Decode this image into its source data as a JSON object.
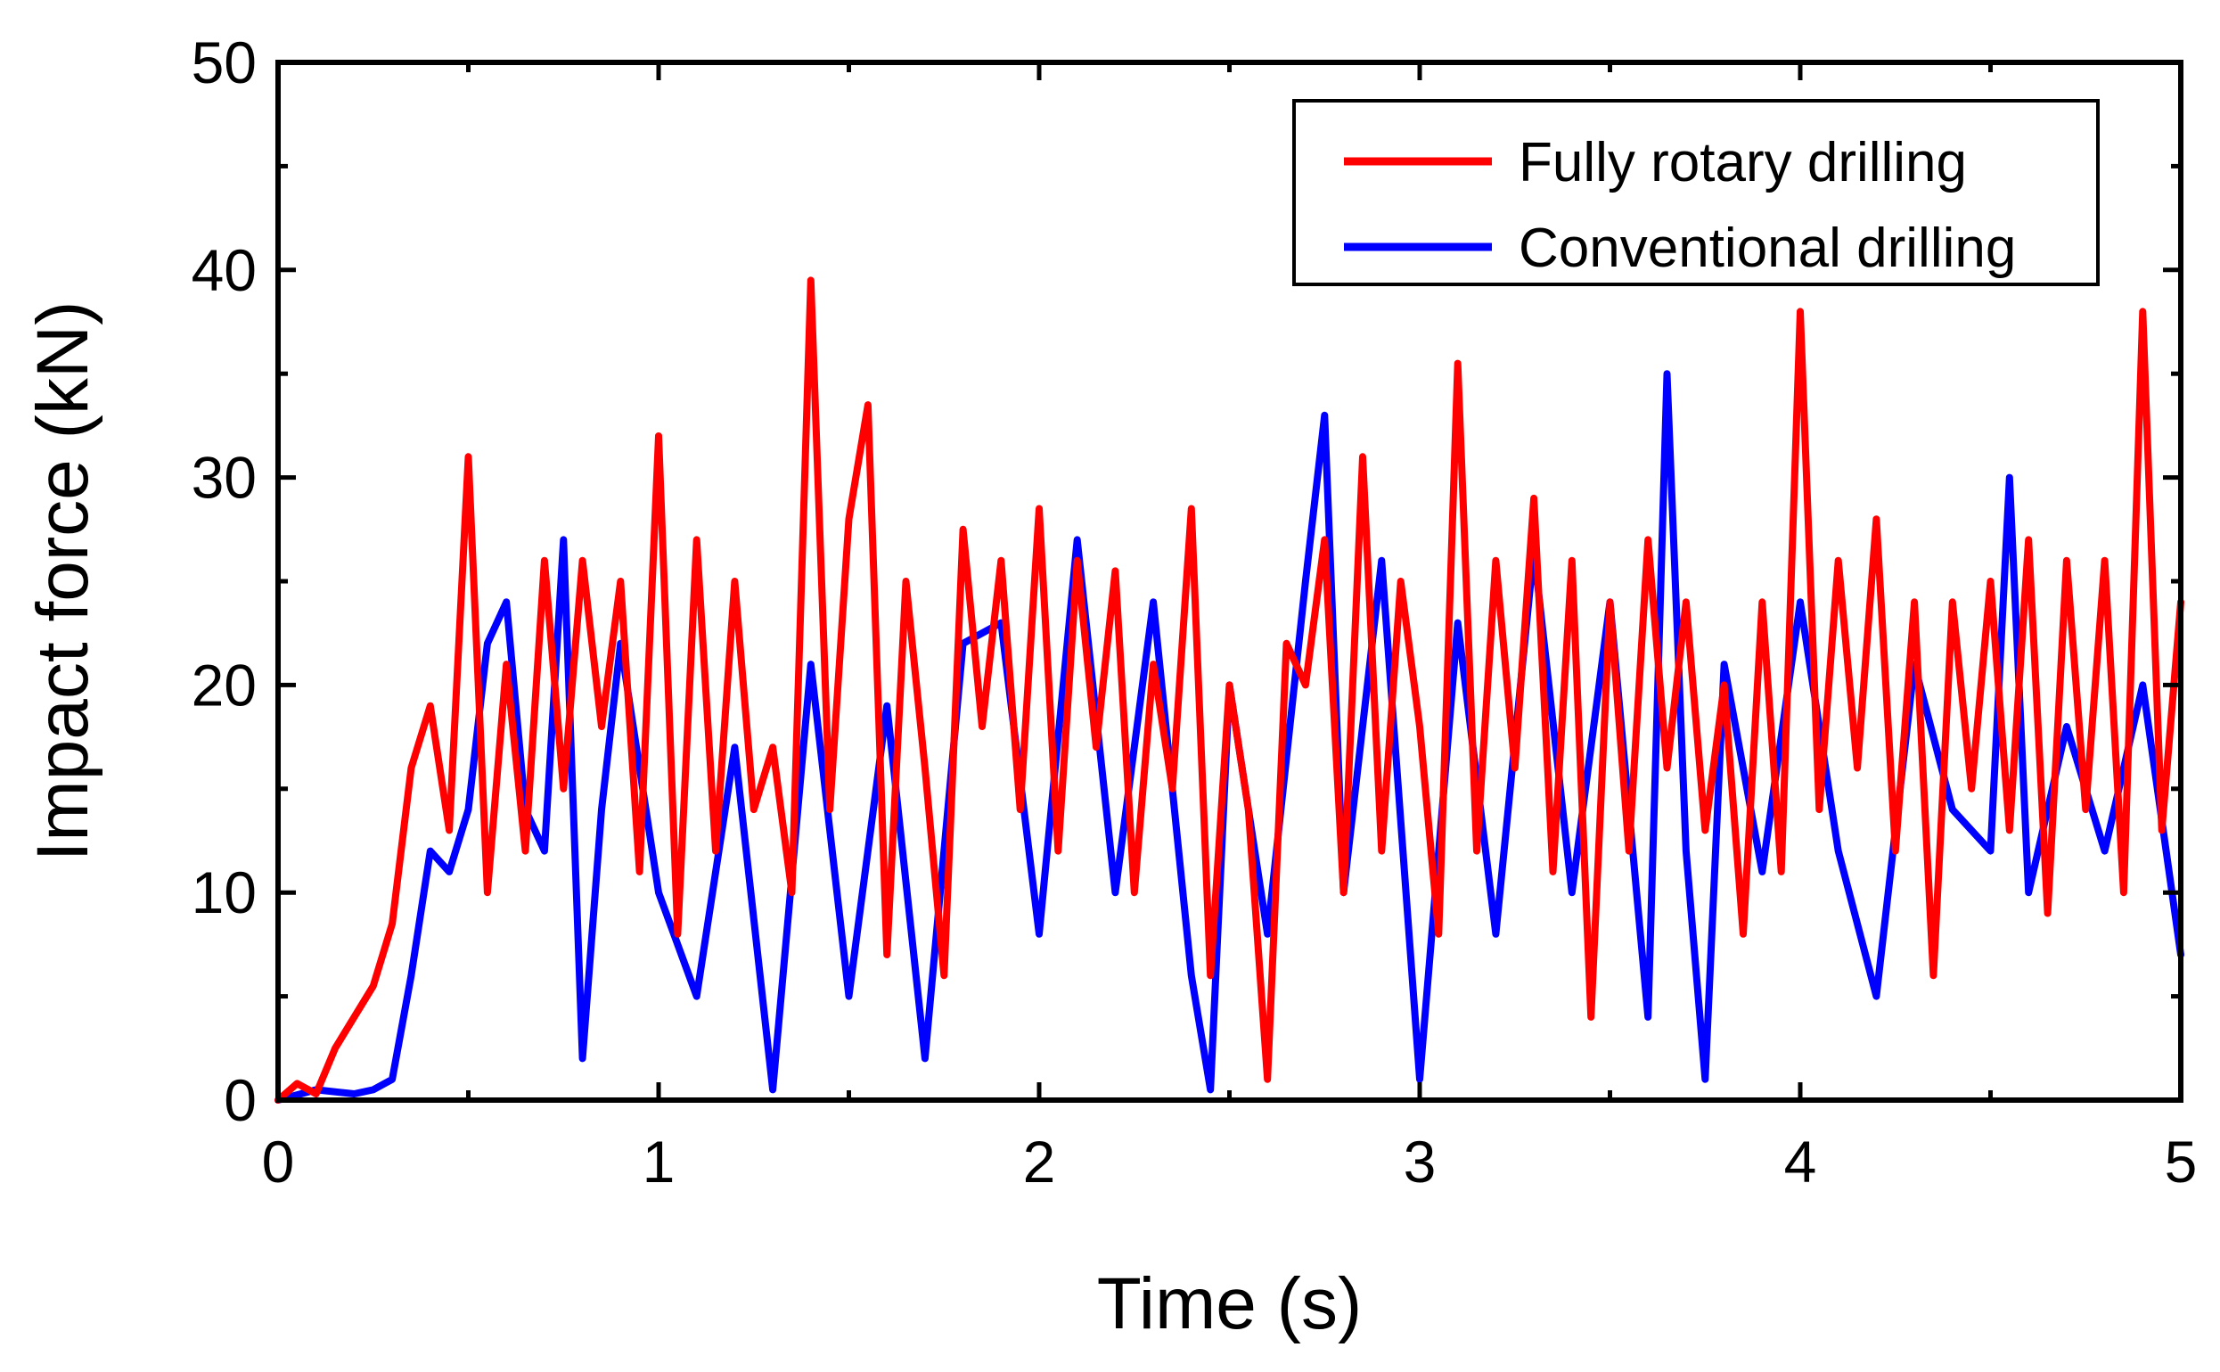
{
  "chart_data": {
    "type": "line",
    "title": "",
    "xlabel": "Time (s)",
    "ylabel": "Impact force (kN)",
    "xlim": [
      0,
      5
    ],
    "ylim": [
      0,
      50
    ],
    "xticks": [
      "0",
      "1",
      "2",
      "3",
      "4",
      "5"
    ],
    "yticks": [
      "0",
      "10",
      "20",
      "30",
      "40",
      "50"
    ],
    "grid": false,
    "legend_position": "top-right",
    "series": [
      {
        "name": "Fully rotary drilling",
        "color": "#ff0000",
        "x": [
          0,
          0.05,
          0.1,
          0.15,
          0.2,
          0.25,
          0.3,
          0.35,
          0.4,
          0.45,
          0.5,
          0.55,
          0.6,
          0.65,
          0.7,
          0.75,
          0.8,
          0.85,
          0.9,
          0.95,
          1.0,
          1.05,
          1.1,
          1.15,
          1.2,
          1.25,
          1.3,
          1.35,
          1.4,
          1.45,
          1.5,
          1.55,
          1.6,
          1.65,
          1.7,
          1.75,
          1.8,
          1.85,
          1.9,
          1.95,
          2.0,
          2.05,
          2.1,
          2.15,
          2.2,
          2.25,
          2.3,
          2.35,
          2.4,
          2.45,
          2.5,
          2.55,
          2.6,
          2.65,
          2.7,
          2.75,
          2.8,
          2.85,
          2.9,
          2.95,
          3.0,
          3.05,
          3.1,
          3.15,
          3.2,
          3.25,
          3.3,
          3.35,
          3.4,
          3.45,
          3.5,
          3.55,
          3.6,
          3.65,
          3.7,
          3.75,
          3.8,
          3.85,
          3.9,
          3.95,
          4.0,
          4.05,
          4.1,
          4.15,
          4.2,
          4.25,
          4.3,
          4.35,
          4.4,
          4.45,
          4.5,
          4.55,
          4.6,
          4.65,
          4.7,
          4.75,
          4.8,
          4.85,
          4.9,
          4.95,
          5.0
        ],
        "values": [
          0,
          0.8,
          0.3,
          2.5,
          4.0,
          5.5,
          8.5,
          16.0,
          19.0,
          13.0,
          31.0,
          10.0,
          21.0,
          12.0,
          26.0,
          15.0,
          26.0,
          18.0,
          25.0,
          11.0,
          32.0,
          8.0,
          27.0,
          12.0,
          25.0,
          14.0,
          17.0,
          10.0,
          39.5,
          14.0,
          28.0,
          33.5,
          7.0,
          25.0,
          16.0,
          6.0,
          27.5,
          18.0,
          26.0,
          14.0,
          28.5,
          12.0,
          26.0,
          17.0,
          25.5,
          10.0,
          21.0,
          15.0,
          28.5,
          6.0,
          20.0,
          14.0,
          1.0,
          22.0,
          20.0,
          27.0,
          10.0,
          31.0,
          12.0,
          25.0,
          18.0,
          8.0,
          35.5,
          12.0,
          26.0,
          16.0,
          29.0,
          11.0,
          26.0,
          4.0,
          24.0,
          12.0,
          27.0,
          16.0,
          24.0,
          13.0,
          20.0,
          8.0,
          24.0,
          11.0,
          38.0,
          14.0,
          26.0,
          16.0,
          28.0,
          12.0,
          24.0,
          6.0,
          24.0,
          15.0,
          25.0,
          13.0,
          27.0,
          9.0,
          26.0,
          14.0,
          26.0,
          10.0,
          38.0,
          13.0,
          24.0
        ]
      },
      {
        "name": "Conventional drilling",
        "color": "#0000ff",
        "x": [
          0,
          0.1,
          0.2,
          0.25,
          0.3,
          0.35,
          0.4,
          0.45,
          0.5,
          0.55,
          0.6,
          0.65,
          0.7,
          0.75,
          0.8,
          0.85,
          0.9,
          1.0,
          1.1,
          1.2,
          1.3,
          1.4,
          1.5,
          1.6,
          1.7,
          1.8,
          1.9,
          2.0,
          2.1,
          2.2,
          2.3,
          2.4,
          2.45,
          2.5,
          2.6,
          2.7,
          2.75,
          2.8,
          2.9,
          3.0,
          3.1,
          3.2,
          3.3,
          3.4,
          3.5,
          3.6,
          3.65,
          3.7,
          3.75,
          3.8,
          3.9,
          4.0,
          4.1,
          4.2,
          4.3,
          4.4,
          4.5,
          4.55,
          4.6,
          4.7,
          4.8,
          4.9,
          5.0
        ],
        "values": [
          0,
          0.5,
          0.3,
          0.5,
          1.0,
          6.0,
          12.0,
          11.0,
          14.0,
          22.0,
          24.0,
          14.0,
          12.0,
          27.0,
          2.0,
          14.0,
          22.0,
          10.0,
          5.0,
          17.0,
          0.5,
          21.0,
          5.0,
          19.0,
          2.0,
          22.0,
          23.0,
          8.0,
          27.0,
          10.0,
          24.0,
          6.0,
          0.5,
          20.0,
          8.0,
          25.0,
          33.0,
          10.0,
          26.0,
          1.0,
          23.0,
          8.0,
          26.5,
          10.0,
          24.0,
          4.0,
          35.0,
          12.0,
          1.0,
          21.0,
          11.0,
          24.0,
          12.0,
          5.0,
          21.0,
          14.0,
          12.0,
          30.0,
          10.0,
          18.0,
          12.0,
          20.0,
          7.0
        ]
      }
    ]
  }
}
